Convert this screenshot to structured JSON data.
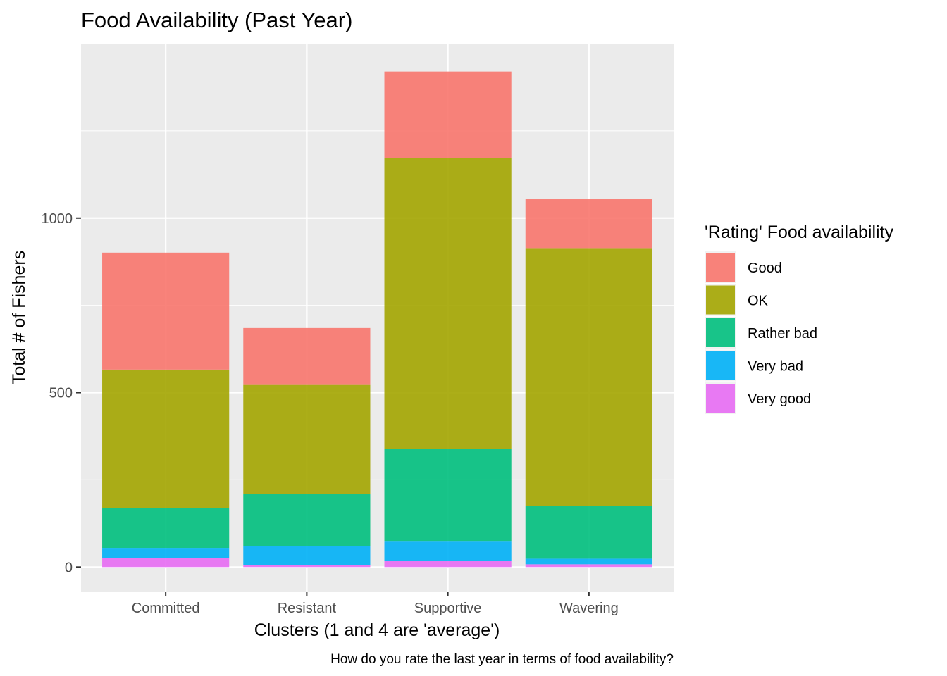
{
  "chart_data": {
    "type": "bar",
    "stacked": true,
    "title": "Food Availability (Past Year)",
    "xlabel": "Clusters (1 and 4 are 'average')",
    "ylabel": "Total # of Fishers",
    "caption": "How do you rate the last year in terms of food availability?",
    "categories": [
      "Committed",
      "Resistant",
      "Supportive",
      "Wavering"
    ],
    "ylim": [
      -70,
      1500
    ],
    "yticks": [
      0,
      500,
      1000
    ],
    "grid": true,
    "legend": {
      "title": "'Rating' Food availability",
      "placement": "right"
    },
    "stack_order": [
      "Very good",
      "Very bad",
      "Rather bad",
      "OK",
      "Good"
    ],
    "series": [
      {
        "name": "Good",
        "color": "#F8766D",
        "values": [
          335,
          163,
          248,
          140
        ]
      },
      {
        "name": "OK",
        "color": "#A3A500",
        "values": [
          396,
          313,
          833,
          738
        ]
      },
      {
        "name": "Rather bad",
        "color": "#00BF7D",
        "values": [
          115,
          148,
          264,
          152
        ]
      },
      {
        "name": "Very bad",
        "color": "#00B0F6",
        "values": [
          30,
          56,
          57,
          16
        ]
      },
      {
        "name": "Very good",
        "color": "#E76BF3",
        "values": [
          25,
          5,
          18,
          8
        ]
      }
    ]
  }
}
